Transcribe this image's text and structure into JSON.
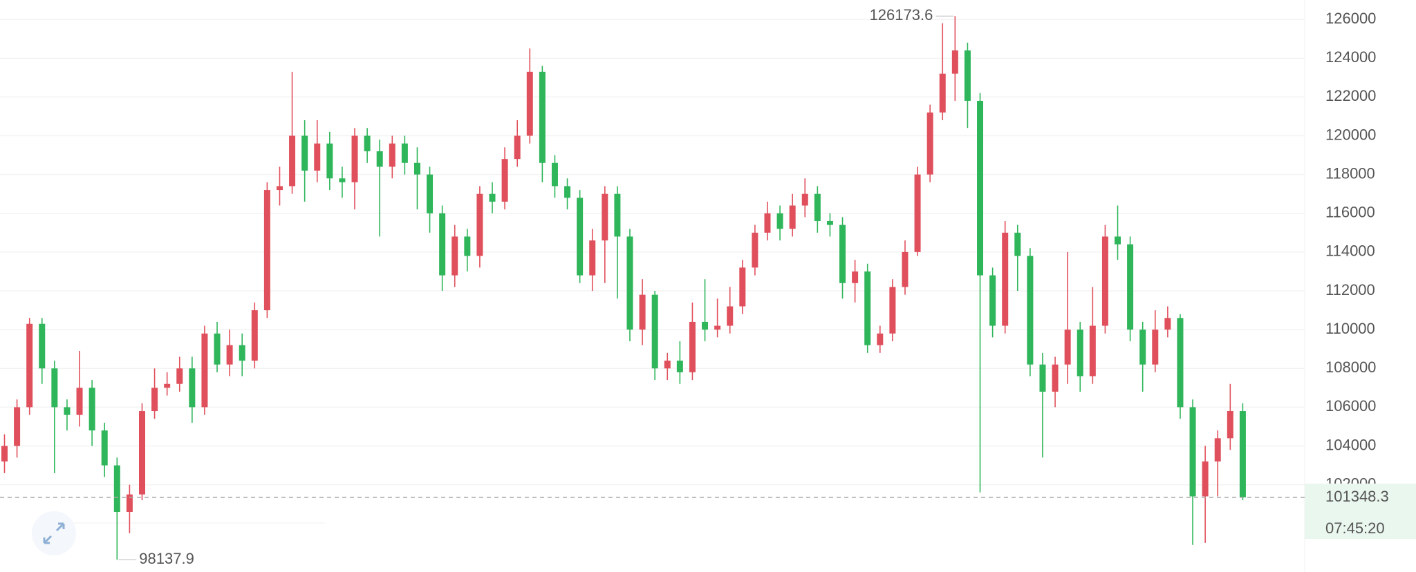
{
  "chart_data": {
    "type": "candlestick",
    "open": [
      103200,
      104000,
      106000,
      110300,
      108000,
      106000,
      105600,
      107000,
      104800,
      103000,
      100600,
      101500,
      105800,
      107000,
      107200,
      108000,
      106000,
      109800,
      108200,
      109200,
      108400,
      111000,
      117200,
      117400,
      120000,
      118200,
      119600,
      117800,
      117600,
      120000,
      119200,
      118400,
      119600,
      118600,
      118000,
      116000,
      112800,
      114800,
      113800,
      117000,
      116600,
      118800,
      120000,
      123300,
      118600,
      117400,
      116800,
      112800,
      114600,
      117000,
      114800,
      110000,
      111800,
      108000,
      108400,
      107800,
      110400,
      110000,
      110200,
      111200,
      113200,
      115000,
      116000,
      115200,
      116400,
      117000,
      115600,
      115400,
      112400,
      113000,
      109200,
      109800,
      112200,
      114000,
      118000,
      121200,
      123200,
      124400,
      121800,
      112800,
      110200,
      115000,
      113800,
      108200,
      106800,
      108200,
      110000,
      107600,
      110200,
      114800,
      114400,
      110000,
      108200,
      110000,
      110600,
      106000,
      101400,
      103200,
      104400,
      105800
    ],
    "high": [
      104600,
      106400,
      110600,
      110600,
      108400,
      106400,
      108900,
      107400,
      105200,
      103400,
      102000,
      106200,
      108000,
      107800,
      108600,
      108600,
      110200,
      110400,
      110000,
      109800,
      111400,
      117600,
      118400,
      123300,
      120800,
      120800,
      120200,
      118400,
      120400,
      120400,
      119800,
      120000,
      120000,
      119400,
      118400,
      116400,
      115400,
      115200,
      117400,
      117600,
      119400,
      120800,
      124500,
      123600,
      119000,
      117800,
      117200,
      115200,
      117400,
      117400,
      115200,
      112600,
      112000,
      108800,
      109400,
      111400,
      112600,
      111600,
      112200,
      113600,
      115400,
      116600,
      116400,
      117000,
      117800,
      117400,
      116000,
      115800,
      113600,
      113400,
      110200,
      112600,
      114600,
      118400,
      121600,
      125800,
      126173.6,
      124800,
      122200,
      113200,
      115600,
      115400,
      114200,
      108800,
      108600,
      114000,
      110400,
      112200,
      115400,
      116400,
      114800,
      110400,
      111000,
      111200,
      110800,
      106400,
      104000,
      104800,
      107200,
      106200
    ],
    "low": [
      102600,
      103400,
      105600,
      107200,
      102600,
      104800,
      105000,
      104000,
      102400,
      98137.9,
      99500,
      101200,
      105400,
      106600,
      106800,
      105200,
      105600,
      107800,
      107600,
      107600,
      108000,
      110600,
      116400,
      117000,
      116600,
      117600,
      117200,
      116800,
      116200,
      118600,
      114800,
      117800,
      118000,
      116200,
      115000,
      112000,
      112200,
      113000,
      113200,
      116000,
      116200,
      118400,
      119600,
      117600,
      116800,
      116200,
      112400,
      112000,
      112400,
      111600,
      109400,
      109200,
      107400,
      107400,
      107200,
      107400,
      109400,
      109600,
      109800,
      110800,
      112800,
      114600,
      114600,
      114800,
      115800,
      115000,
      114800,
      111600,
      111400,
      108800,
      108800,
      109400,
      111800,
      113800,
      117600,
      120800,
      121800,
      120400,
      101600,
      109600,
      109800,
      112000,
      107600,
      103400,
      106000,
      107200,
      106800,
      107200,
      109800,
      113600,
      109400,
      106800,
      107800,
      109600,
      105400,
      98900,
      99000,
      101400,
      103800,
      101200
    ],
    "close": [
      104000,
      106000,
      110300,
      108000,
      106000,
      105600,
      107000,
      104800,
      103000,
      100600,
      101500,
      105800,
      107000,
      107200,
      108000,
      106000,
      109800,
      108200,
      109200,
      108400,
      111000,
      117200,
      117400,
      120000,
      118200,
      119600,
      117800,
      117600,
      120000,
      119200,
      118400,
      119600,
      118600,
      118000,
      116000,
      112800,
      114800,
      113800,
      117000,
      116600,
      118800,
      120000,
      123300,
      118600,
      117400,
      116800,
      112800,
      114600,
      117000,
      114800,
      110000,
      111800,
      108000,
      108400,
      107800,
      110400,
      110000,
      110200,
      111200,
      113200,
      115000,
      116000,
      115200,
      116400,
      117000,
      115600,
      115400,
      112400,
      113000,
      109200,
      109800,
      112200,
      114000,
      118000,
      121200,
      123200,
      124400,
      121800,
      112800,
      110200,
      115000,
      113800,
      108200,
      106800,
      108200,
      110000,
      107600,
      110200,
      114800,
      114400,
      110000,
      108200,
      110000,
      110600,
      106000,
      101400,
      103200,
      104400,
      105800,
      101348.3
    ],
    "ylim": [
      97500,
      127000
    ],
    "yticks": [
      102000,
      104000,
      106000,
      108000,
      110000,
      112000,
      114000,
      116000,
      118000,
      120000,
      122000,
      124000,
      126000
    ],
    "grid": true,
    "up_color": "#e0505c",
    "down_color": "#2fb55a",
    "countdown": "07:45:20"
  }
}
